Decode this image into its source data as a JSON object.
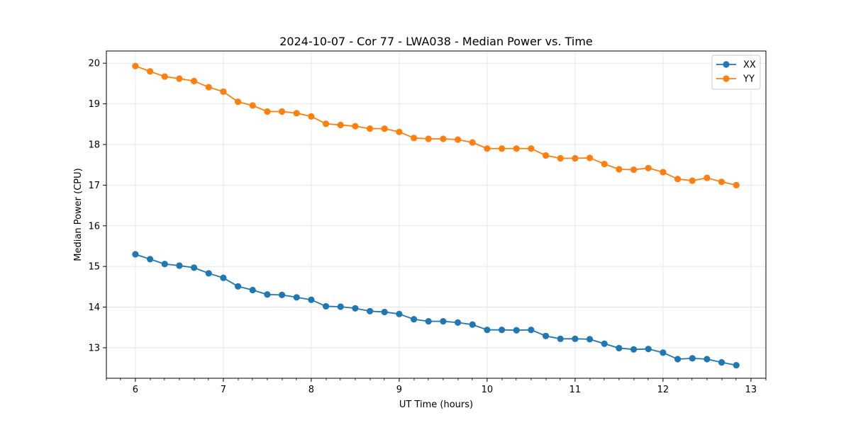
{
  "chart_data": {
    "type": "line",
    "title": "2024-10-07 - Cor 77 - LWA038 - Median Power vs. Time",
    "xlabel": "UT Time (hours)",
    "ylabel": "Median Power (CPU)",
    "xlim": [
      5.67,
      13.17
    ],
    "ylim": [
      12.25,
      20.3
    ],
    "grid": true,
    "legend_position": "top-right",
    "x_ticks": [
      6,
      7,
      8,
      9,
      10,
      11,
      12,
      13
    ],
    "x_tick_labels": [
      "6",
      "7",
      "8",
      "9",
      "10",
      "11",
      "12",
      "13"
    ],
    "x_minor_ticks": [
      5.67,
      5.83,
      6.17,
      6.33,
      6.5,
      6.67,
      6.83,
      7.17,
      7.33,
      7.5,
      7.67,
      7.83,
      8.17,
      8.33,
      8.5,
      8.67,
      8.83,
      9.17,
      9.33,
      9.5,
      9.67,
      9.83,
      10.17,
      10.33,
      10.5,
      10.67,
      10.83,
      11.17,
      11.33,
      11.5,
      11.67,
      11.83,
      12.17,
      12.33,
      12.5,
      12.67,
      12.83,
      13.17
    ],
    "y_ticks": [
      13,
      14,
      15,
      16,
      17,
      18,
      19,
      20
    ],
    "y_tick_labels": [
      "13",
      "14",
      "15",
      "16",
      "17",
      "18",
      "19",
      "20"
    ],
    "x": [
      6.0,
      6.1667,
      6.3333,
      6.5,
      6.6667,
      6.8333,
      7.0,
      7.1667,
      7.3333,
      7.5,
      7.6667,
      7.8333,
      8.0,
      8.1667,
      8.3333,
      8.5,
      8.6667,
      8.8333,
      9.0,
      9.1667,
      9.3333,
      9.5,
      9.6667,
      9.8333,
      10.0,
      10.1667,
      10.3333,
      10.5,
      10.6667,
      10.8333,
      11.0,
      11.1667,
      11.3333,
      11.5,
      11.6667,
      11.8333,
      12.0,
      12.1667,
      12.3333,
      12.5,
      12.6667,
      12.8333
    ],
    "series": [
      {
        "name": "XX",
        "color": "#1f77b4",
        "values": [
          15.3,
          15.18,
          15.06,
          15.02,
          14.97,
          14.83,
          14.72,
          14.51,
          14.42,
          14.31,
          14.3,
          14.24,
          14.18,
          14.02,
          14.01,
          13.97,
          13.9,
          13.88,
          13.83,
          13.7,
          13.65,
          13.65,
          13.62,
          13.57,
          13.44,
          13.44,
          13.43,
          13.44,
          13.29,
          13.22,
          13.22,
          13.21,
          13.1,
          12.99,
          12.96,
          12.97,
          12.88,
          12.72,
          12.74,
          12.72,
          12.64,
          12.57
        ]
      },
      {
        "name": "YY",
        "color": "#ff7f0e",
        "values": [
          19.93,
          19.8,
          19.67,
          19.62,
          19.56,
          19.41,
          19.3,
          19.05,
          18.96,
          18.81,
          18.81,
          18.77,
          18.69,
          18.51,
          18.48,
          18.45,
          18.39,
          18.39,
          18.31,
          18.16,
          18.14,
          18.14,
          18.12,
          18.05,
          17.9,
          17.9,
          17.9,
          17.9,
          17.73,
          17.66,
          17.66,
          17.67,
          17.52,
          17.39,
          17.38,
          17.42,
          17.32,
          17.15,
          17.11,
          17.18,
          17.08,
          17.0
        ]
      }
    ]
  }
}
